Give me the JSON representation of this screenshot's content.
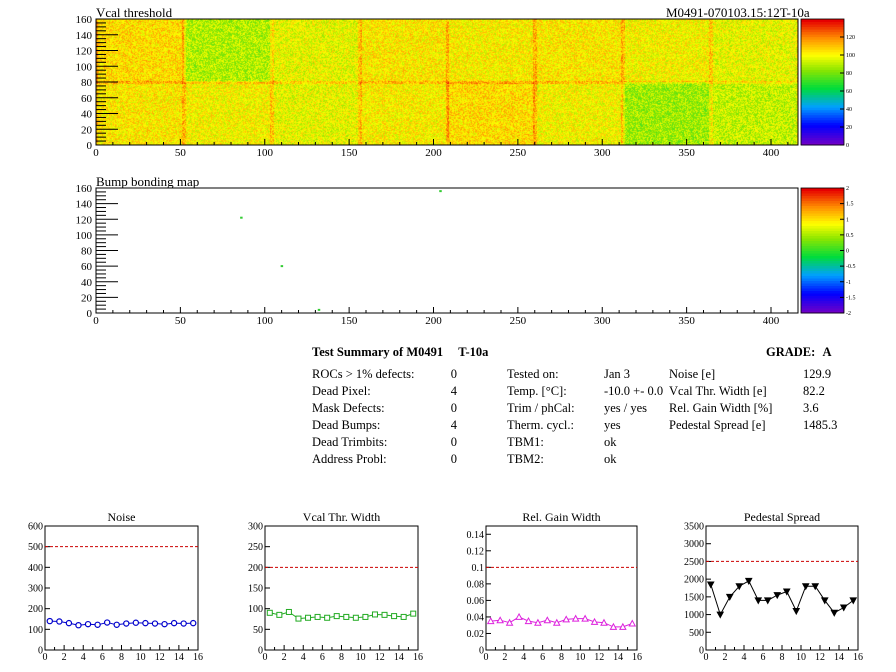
{
  "maps": {
    "vcal": {
      "title": "Vcal threshold",
      "module_id": "M0491-070103.15:12T-10a",
      "x_ticks": [
        "0",
        "50",
        "100",
        "150",
        "200",
        "250",
        "300",
        "350",
        "400"
      ],
      "y_ticks": [
        "0",
        "20",
        "40",
        "60",
        "80",
        "100",
        "120",
        "140",
        "160"
      ],
      "palette_ticks": [
        "0",
        "20",
        "40",
        "60",
        "80",
        "100",
        "120"
      ],
      "xlim": [
        0,
        416
      ],
      "ylim": [
        0,
        160
      ],
      "zlim": [
        0,
        140
      ]
    },
    "bump": {
      "title": "Bump bonding map",
      "x_ticks": [
        "0",
        "50",
        "100",
        "150",
        "200",
        "250",
        "300",
        "350",
        "400"
      ],
      "y_ticks": [
        "0",
        "20",
        "40",
        "60",
        "80",
        "100",
        "120",
        "140",
        "160"
      ],
      "palette_ticks": [
        "-2",
        "-1.5",
        "-1",
        "-0.5",
        "0",
        "0.5",
        "1",
        "1.5",
        "2"
      ],
      "xlim": [
        0,
        416
      ],
      "ylim": [
        0,
        160
      ],
      "zlim": [
        -2,
        2
      ],
      "hot_pixels": [
        [
          204,
          156
        ],
        [
          86,
          122
        ],
        [
          110,
          60
        ],
        [
          132,
          4
        ]
      ]
    }
  },
  "summary": {
    "title": "Test Summary of M0491",
    "module_tag": "T-10a",
    "grade_label": "GRADE:",
    "grade": "A",
    "defects": [
      {
        "label": "ROCs > 1% defects:",
        "value": "0"
      },
      {
        "label": "Dead Pixel:",
        "value": "4"
      },
      {
        "label": "Mask Defects:",
        "value": "0"
      },
      {
        "label": "Dead Bumps:",
        "value": "4"
      },
      {
        "label": "Dead Trimbits:",
        "value": "0"
      },
      {
        "label": "Address Probl:",
        "value": "0"
      }
    ],
    "conditions": [
      {
        "label": "Tested on:",
        "value": "Jan 3"
      },
      {
        "label": "Temp. [°C]:",
        "value": "-10.0 +- 0.0"
      },
      {
        "label": "Trim / phCal:",
        "value": "yes / yes"
      },
      {
        "label": "Therm. cycl.:",
        "value": "yes"
      },
      {
        "label": "TBM1:",
        "value": "ok"
      },
      {
        "label": "TBM2:",
        "value": "ok"
      }
    ],
    "results": [
      {
        "label": "Noise [e]",
        "value": "129.9"
      },
      {
        "label": "Vcal Thr. Width [e]",
        "value": "82.2"
      },
      {
        "label": "Rel. Gain Width [%]",
        "value": "3.6"
      },
      {
        "label": "Pedestal Spread [e]",
        "value": "1485.3"
      }
    ]
  },
  "chart_data": [
    {
      "type": "line",
      "title": "Noise",
      "color": "#0000cc",
      "marker": "circle",
      "x": [
        0,
        1,
        2,
        3,
        4,
        5,
        6,
        7,
        8,
        9,
        10,
        11,
        12,
        13,
        14,
        15
      ],
      "values": [
        140,
        138,
        130,
        120,
        125,
        122,
        133,
        122,
        128,
        132,
        130,
        128,
        125,
        130,
        128,
        130
      ],
      "ylim": [
        0,
        600
      ],
      "xlim": [
        0,
        16
      ],
      "threshold": 500,
      "y_ticks": [
        "0",
        "100",
        "200",
        "300",
        "400",
        "500",
        "600"
      ],
      "x_ticks": [
        "0",
        "2",
        "4",
        "6",
        "8",
        "10",
        "12",
        "14",
        "16"
      ]
    },
    {
      "type": "line",
      "title": "Vcal Thr. Width",
      "color": "#22aa22",
      "marker": "square",
      "x": [
        0,
        1,
        2,
        3,
        4,
        5,
        6,
        7,
        8,
        9,
        10,
        11,
        12,
        13,
        14,
        15
      ],
      "values": [
        90,
        85,
        92,
        76,
        78,
        80,
        78,
        82,
        80,
        78,
        80,
        86,
        85,
        82,
        80,
        88
      ],
      "ylim": [
        0,
        300
      ],
      "xlim": [
        0,
        16
      ],
      "threshold": 200,
      "y_ticks": [
        "0",
        "50",
        "100",
        "150",
        "200",
        "250",
        "300"
      ],
      "x_ticks": [
        "0",
        "2",
        "4",
        "6",
        "8",
        "10",
        "12",
        "14",
        "16"
      ]
    },
    {
      "type": "line",
      "title": "Rel. Gain Width",
      "color": "#dd22dd",
      "marker": "triangle",
      "x": [
        0,
        1,
        2,
        3,
        4,
        5,
        6,
        7,
        8,
        9,
        10,
        11,
        12,
        13,
        14,
        15
      ],
      "values": [
        0.035,
        0.036,
        0.033,
        0.04,
        0.035,
        0.033,
        0.036,
        0.033,
        0.037,
        0.038,
        0.038,
        0.034,
        0.033,
        0.028,
        0.028,
        0.032
      ],
      "ylim": [
        0,
        0.15
      ],
      "xlim": [
        0,
        16
      ],
      "threshold": 0.1,
      "y_ticks": [
        "0",
        "0.02",
        "0.04",
        "0.06",
        "0.08",
        "0.1",
        "0.12",
        "0.14"
      ],
      "x_ticks": [
        "0",
        "2",
        "4",
        "6",
        "8",
        "10",
        "12",
        "14",
        "16"
      ]
    },
    {
      "type": "line",
      "title": "Pedestal Spread",
      "color": "#000000",
      "marker": "triangle-down",
      "x": [
        0,
        1,
        2,
        3,
        4,
        5,
        6,
        7,
        8,
        9,
        10,
        11,
        12,
        13,
        14,
        15
      ],
      "values": [
        1850,
        1000,
        1500,
        1800,
        1950,
        1400,
        1400,
        1550,
        1650,
        1100,
        1800,
        1800,
        1400,
        1050,
        1200,
        1400
      ],
      "ylim": [
        0,
        3500
      ],
      "xlim": [
        0,
        16
      ],
      "threshold": 2500,
      "y_ticks": [
        "0",
        "500",
        "1000",
        "1500",
        "2000",
        "2500",
        "3000",
        "3500"
      ],
      "x_ticks": [
        "0",
        "2",
        "4",
        "6",
        "8",
        "10",
        "12",
        "14",
        "16"
      ]
    }
  ]
}
